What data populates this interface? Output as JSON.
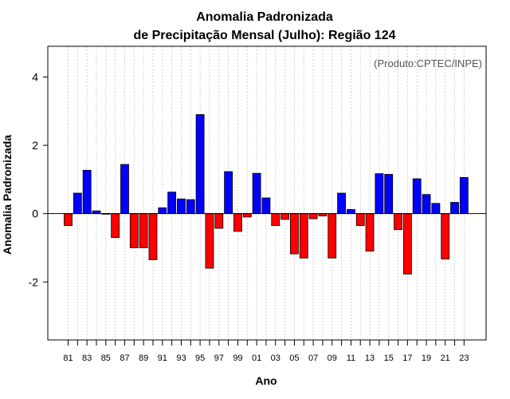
{
  "chart_data": {
    "type": "bar",
    "title_line1": "Anomalia Padronizada",
    "title_line2": "de Precipitação Mensal (Julho): Região 124",
    "credit": "(Produto:CPTEC/INPE)",
    "xlabel": "Ano",
    "ylabel": "Anomalia Padronizada",
    "ylim": [
      -3.7,
      4.9
    ],
    "yticks": [
      -2,
      0,
      2,
      4
    ],
    "categories": [
      "81",
      "82",
      "83",
      "84",
      "85",
      "86",
      "87",
      "88",
      "89",
      "90",
      "91",
      "92",
      "93",
      "94",
      "95",
      "96",
      "97",
      "98",
      "99",
      "00",
      "01",
      "02",
      "03",
      "04",
      "05",
      "06",
      "07",
      "08",
      "09",
      "10",
      "11",
      "12",
      "13",
      "14",
      "15",
      "16",
      "17",
      "18",
      "19",
      "20",
      "21",
      "22",
      "23"
    ],
    "tick_labels_shown": [
      "81",
      "83",
      "85",
      "87",
      "89",
      "91",
      "93",
      "95",
      "97",
      "99",
      "01",
      "03",
      "05",
      "07",
      "09",
      "11",
      "13",
      "15",
      "17",
      "19",
      "21",
      "23"
    ],
    "values": [
      -0.35,
      0.6,
      1.27,
      0.08,
      0.0,
      -0.7,
      1.44,
      -1.0,
      -1.0,
      -1.35,
      0.17,
      0.63,
      0.43,
      0.41,
      2.9,
      -1.6,
      -0.43,
      1.23,
      -0.52,
      -0.1,
      1.18,
      0.46,
      -0.35,
      -0.17,
      -1.18,
      -1.3,
      -0.15,
      -0.07,
      -1.3,
      0.6,
      0.12,
      -0.35,
      -1.1,
      1.17,
      1.15,
      -0.47,
      -1.77,
      1.02,
      0.56,
      0.3,
      -1.33,
      0.33,
      1.06
    ],
    "colors": {
      "positive": "#0000ff",
      "negative": "#ff0000",
      "grid": "#c8c8c8",
      "border": "#000000"
    }
  }
}
